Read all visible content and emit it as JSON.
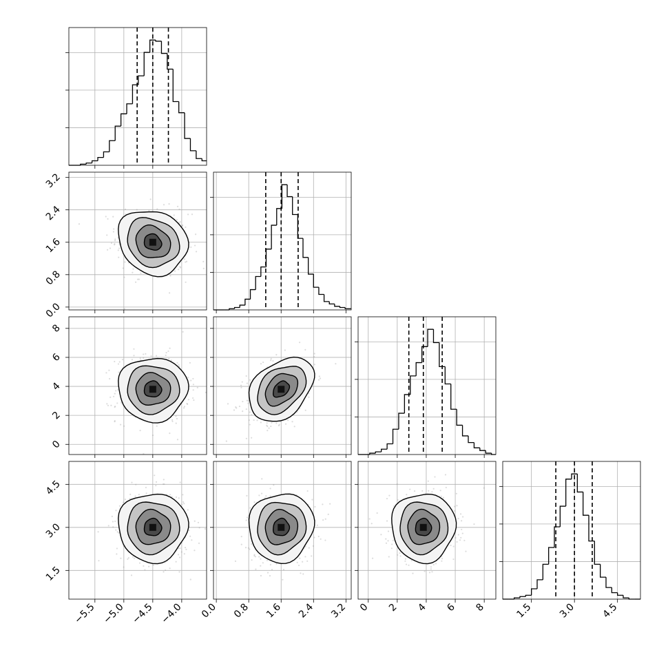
{
  "chart_data": {
    "type": "corner",
    "params": [
      {
        "id": "p0",
        "mean": -4.5,
        "sd": 0.3,
        "range": [
          -5.95,
          -3.57
        ],
        "ticks": [
          -5.5,
          -5.0,
          -4.5,
          -4.0
        ],
        "tick_labels": [
          "−5.5",
          "−5.0",
          "−4.5",
          "−4.0"
        ],
        "quantiles": [
          -4.77,
          -4.5,
          -4.23
        ]
      },
      {
        "id": "p1",
        "mean": 1.6,
        "sd": 0.4,
        "range": [
          -0.07,
          3.33
        ],
        "ticks": [
          0.0,
          0.8,
          1.6,
          2.4,
          3.2
        ],
        "tick_labels": [
          "0.0",
          "0.8",
          "1.6",
          "2.4",
          "3.2"
        ],
        "quantiles": [
          1.22,
          1.6,
          2.02
        ]
      },
      {
        "id": "p2",
        "mean": 3.8,
        "sd": 1.1,
        "range": [
          -0.7,
          8.8
        ],
        "ticks": [
          0,
          2,
          4,
          6,
          8
        ],
        "tick_labels": [
          "0",
          "2",
          "4",
          "6",
          "8"
        ],
        "quantiles": [
          2.8,
          3.8,
          5.1
        ]
      },
      {
        "id": "p3",
        "mean": 3.0,
        "sd": 0.6,
        "range": [
          0.5,
          5.3
        ],
        "ticks": [
          1.5,
          3.0,
          4.5
        ],
        "tick_labels": [
          "1.5",
          "3.0",
          "4.5"
        ],
        "quantiles": [
          2.35,
          3.0,
          3.62
        ]
      }
    ],
    "histograms": [
      {
        "param": "p0",
        "bin_edges": [
          -5.95,
          -5.85,
          -5.75,
          -5.65,
          -5.55,
          -5.45,
          -5.35,
          -5.25,
          -5.15,
          -5.05,
          -4.95,
          -4.85,
          -4.75,
          -4.65,
          -4.55,
          -4.45,
          -4.35,
          -4.25,
          -4.15,
          -4.05,
          -3.95,
          -3.85,
          -3.75,
          -3.65,
          -3.57
        ],
        "counts": [
          0,
          0,
          1,
          2,
          4,
          7,
          12,
          22,
          35,
          46,
          55,
          72,
          80,
          101,
          112,
          111,
          100,
          86,
          57,
          47,
          24,
          13,
          6,
          4
        ]
      },
      {
        "param": "p1",
        "bin_edges": [
          -0.07,
          0.06,
          0.19,
          0.32,
          0.45,
          0.58,
          0.71,
          0.84,
          0.97,
          1.1,
          1.23,
          1.36,
          1.49,
          1.62,
          1.75,
          1.88,
          2.01,
          2.14,
          2.27,
          2.4,
          2.53,
          2.66,
          2.79,
          2.92,
          3.05,
          3.18,
          3.33
        ],
        "counts": [
          0,
          0,
          0,
          1,
          2,
          4,
          9,
          17,
          28,
          36,
          51,
          71,
          85,
          105,
          95,
          80,
          60,
          44,
          30,
          19,
          13,
          7,
          5,
          3,
          2,
          1
        ]
      },
      {
        "param": "p2",
        "bin_edges": [
          -0.7,
          -0.3,
          0.1,
          0.5,
          0.9,
          1.3,
          1.7,
          2.1,
          2.5,
          2.9,
          3.3,
          3.7,
          4.1,
          4.5,
          4.9,
          5.3,
          5.7,
          6.1,
          6.5,
          6.9,
          7.3,
          7.7,
          8.1,
          8.5,
          8.8
        ],
        "counts": [
          0,
          0,
          1,
          2,
          4,
          8,
          19,
          31,
          45,
          59,
          69,
          81,
          94,
          84,
          66,
          53,
          34,
          22,
          14,
          9,
          5,
          3,
          1,
          0
        ]
      },
      {
        "param": "p3",
        "bin_edges": [
          0.5,
          0.7,
          0.9,
          1.1,
          1.3,
          1.5,
          1.7,
          1.9,
          2.1,
          2.3,
          2.5,
          2.7,
          2.9,
          3.1,
          3.3,
          3.5,
          3.7,
          3.9,
          4.1,
          4.3,
          4.5,
          4.7,
          4.9,
          5.1,
          5.3
        ],
        "counts": [
          0,
          0,
          1,
          2,
          3,
          8,
          15,
          27,
          40,
          56,
          72,
          93,
          97,
          83,
          65,
          45,
          27,
          17,
          9,
          5,
          3,
          1,
          0,
          0
        ]
      }
    ],
    "pairs": [
      {
        "x": "p0",
        "y": "p1",
        "correlation": -0.15,
        "contour_levels_sigma": [
          0.5,
          1.0,
          1.5,
          2.0
        ]
      },
      {
        "x": "p0",
        "y": "p2",
        "correlation": 0.0,
        "contour_levels_sigma": [
          0.5,
          1.0,
          1.5,
          2.0
        ]
      },
      {
        "x": "p1",
        "y": "p2",
        "correlation": 0.35,
        "contour_levels_sigma": [
          0.5,
          1.0,
          1.5,
          2.0
        ]
      },
      {
        "x": "p0",
        "y": "p3",
        "correlation": 0.0,
        "contour_levels_sigma": [
          0.5,
          1.0,
          1.5,
          2.0
        ]
      },
      {
        "x": "p1",
        "y": "p3",
        "correlation": 0.05,
        "contour_levels_sigma": [
          0.5,
          1.0,
          1.5,
          2.0
        ]
      },
      {
        "x": "p2",
        "y": "p3",
        "correlation": 0.0,
        "contour_levels_sigma": [
          0.5,
          1.0,
          1.5,
          2.0
        ]
      }
    ],
    "grid": true,
    "quantile_lines": "dashed",
    "axis_labels": []
  }
}
